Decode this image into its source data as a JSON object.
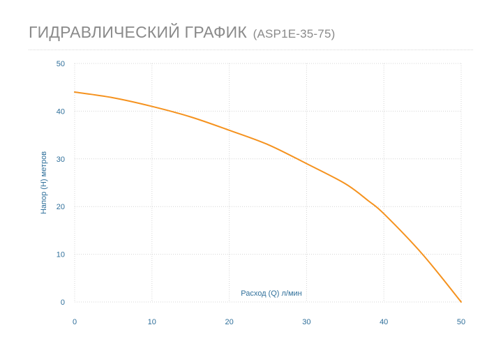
{
  "header": {
    "title": "ГИДРАВЛИЧЕСКИЙ ГРАФИК",
    "subtitle": "(ASP1E-35-75)"
  },
  "colors": {
    "curve": "#f5921e",
    "grid": "#d4d4d4",
    "tick_text": "#2f6f9a",
    "title": "#8a8a8a"
  },
  "chart_data": {
    "type": "line",
    "title": "ГИДРАВЛИЧЕСКИЙ ГРАФИК (ASP1E-35-75)",
    "xlabel": "Расход (Q) л/мин",
    "ylabel": "Напор (H) метров",
    "xlim": [
      0,
      50
    ],
    "ylim": [
      0,
      50
    ],
    "x_ticks": [
      0,
      10,
      20,
      30,
      40,
      50
    ],
    "y_ticks": [
      0,
      10,
      20,
      30,
      40,
      50
    ],
    "grid": true,
    "series": [
      {
        "x": [
          0,
          5,
          10,
          15,
          20,
          25,
          30,
          35,
          38,
          40,
          45,
          50
        ],
        "values": [
          44,
          42.8,
          41,
          38.8,
          36,
          33,
          29,
          24.8,
          21.2,
          18.5,
          10,
          0
        ]
      }
    ]
  }
}
